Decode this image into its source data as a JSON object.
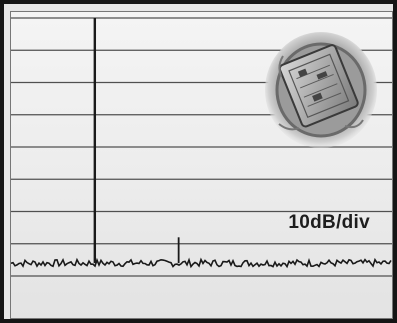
{
  "chart_data": {
    "type": "line",
    "title": "",
    "xlabel": "",
    "ylabel": "",
    "grid": true,
    "y_scale_label": "10dB/div",
    "y_divisions": 8,
    "ylim": [
      -80,
      0
    ],
    "xlim": [
      0,
      100
    ],
    "noise_floor_db": -76,
    "series": [
      {
        "x": [
          0,
          22,
          44,
          100
        ],
        "values": [
          -76,
          0,
          -68,
          -76
        ]
      }
    ]
  },
  "decor": {
    "image": "ic-chip-photo-icon",
    "trace_color": "#1a1a1a",
    "grid_color": "#505050"
  }
}
